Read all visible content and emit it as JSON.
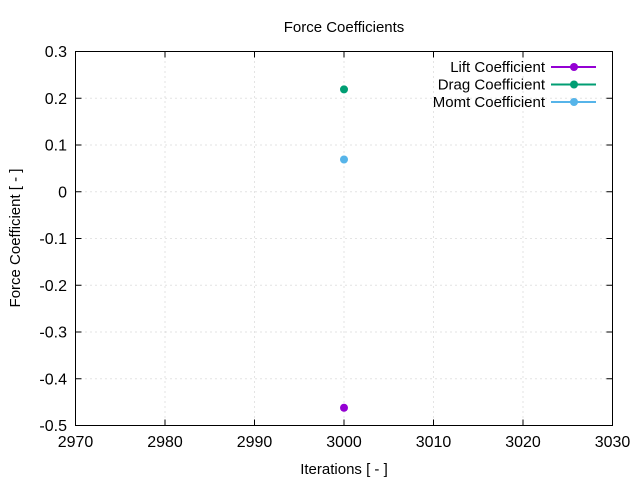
{
  "chart_data": {
    "type": "scatter",
    "title": "Force Coefficients",
    "xlabel": "Iterations [ - ]",
    "ylabel": "Force Coefficient [ - ]",
    "xlim": [
      2970,
      3030
    ],
    "ylim": [
      -0.5,
      0.3
    ],
    "xticks": [
      2970,
      2980,
      2990,
      3000,
      3010,
      3020,
      3030
    ],
    "yticks": [
      -0.5,
      -0.4,
      -0.3,
      -0.2,
      -0.1,
      0,
      0.1,
      0.2,
      0.3
    ],
    "xtick_labels": [
      "2970",
      "2980",
      "2990",
      "3000",
      "3010",
      "3020",
      "3030"
    ],
    "ytick_labels": [
      "-0.5",
      "-0.4",
      "-0.3",
      "-0.2",
      "-0.1",
      "0",
      "0.1",
      "0.2",
      "0.3"
    ],
    "grid": true,
    "legend_position": "top-right",
    "series": [
      {
        "name": "Lift Coefficient",
        "color": "#9400d3",
        "points": [
          {
            "x": 3000,
            "y": -0.462
          }
        ]
      },
      {
        "name": "Drag Coefficient",
        "color": "#009e73",
        "points": [
          {
            "x": 3000,
            "y": 0.219
          }
        ]
      },
      {
        "name": "Momt Coefficient",
        "color": "#56b4e9",
        "points": [
          {
            "x": 3000,
            "y": 0.069
          }
        ]
      }
    ]
  }
}
